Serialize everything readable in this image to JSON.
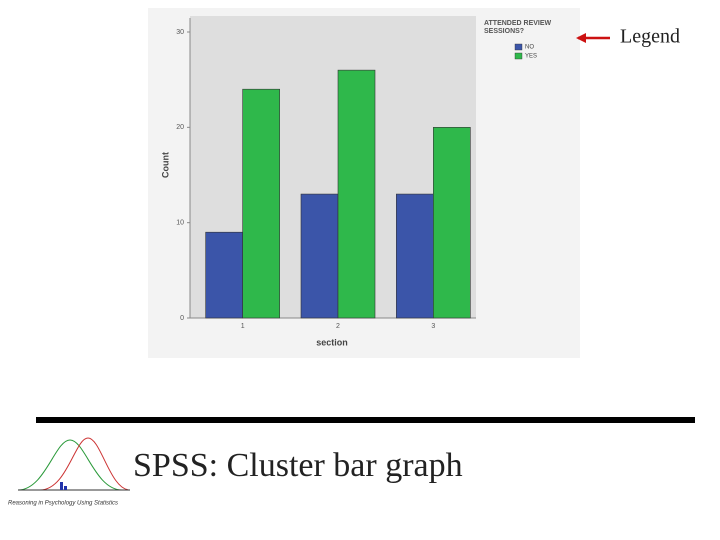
{
  "chart_data": {
    "type": "bar",
    "x_label": "section",
    "y_label": "Count",
    "categories": [
      "1",
      "2",
      "3"
    ],
    "series": [
      {
        "name": "NO",
        "color": "#3b55a9",
        "values": [
          9,
          13,
          13
        ]
      },
      {
        "name": "YES",
        "color": "#2fb84b",
        "values": [
          24,
          26,
          20
        ]
      }
    ],
    "legend_title": "ATTENDED REVIEW SESSIONS?",
    "ylim": [
      0,
      30
    ],
    "yticks": [
      0,
      10,
      20,
      30
    ],
    "annotation": "Legend"
  },
  "slide": {
    "title": "SPSS: Cluster bar graph",
    "logo_text": "Reasoning in Psychology Using Statistics"
  }
}
